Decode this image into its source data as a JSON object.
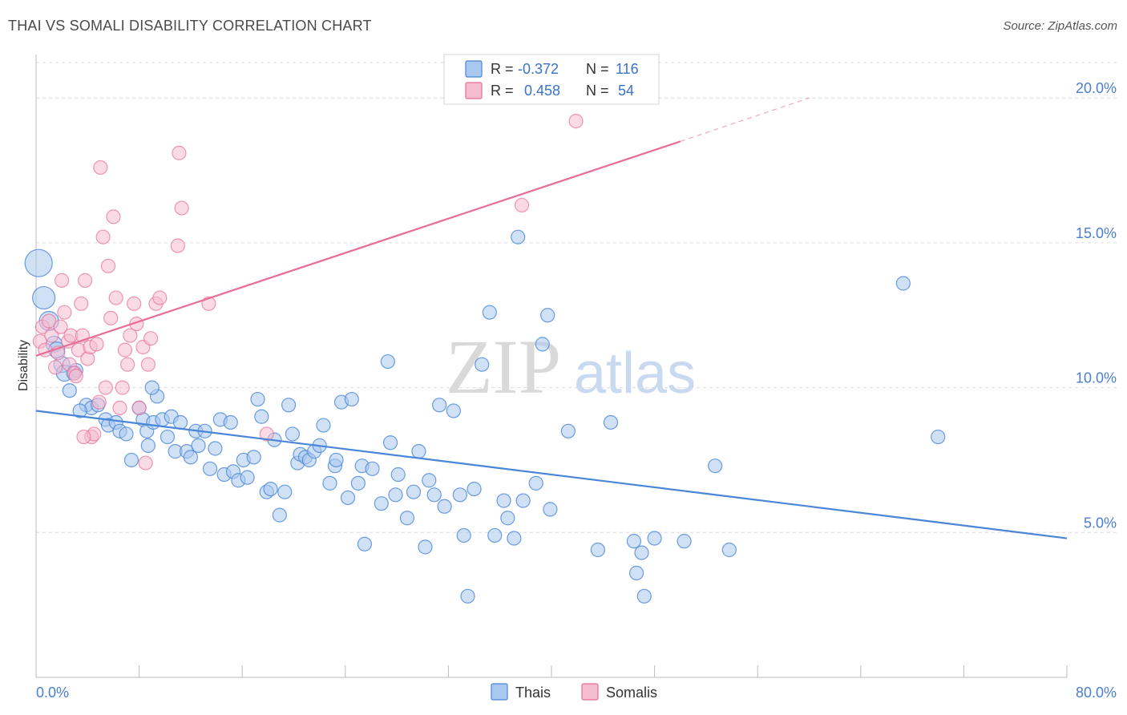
{
  "header": {
    "title": "THAI VS SOMALI DISABILITY CORRELATION CHART",
    "source": "Source: ZipAtlas.com"
  },
  "watermark": {
    "zip": "ZIP",
    "atlas": "atlas"
  },
  "colors": {
    "thais": "#4a86d8",
    "thais_fill": "#a9c8ef",
    "somalis": "#e86d98",
    "somalis_fill": "#f5bcd0",
    "grid": "#dcdcdc",
    "axis_label": "#4a7fd0"
  },
  "legend_top": {
    "rows": [
      {
        "r_label": "R =",
        "r_value": "-0.372",
        "n_label": "N =",
        "n_value": "116"
      },
      {
        "r_label": "R =",
        "r_value": "0.458",
        "n_label": "N =",
        "n_value": "54"
      }
    ]
  },
  "chart_data": {
    "type": "scatter",
    "title": "THAI VS SOMALI DISABILITY CORRELATION CHART",
    "xlabel": "",
    "ylabel": "Disability",
    "xlim": [
      0,
      80
    ],
    "ylim": [
      0,
      21.5
    ],
    "x_tick_labels": [
      "0.0%",
      "80.0%"
    ],
    "y_ticks": [
      5,
      10,
      15,
      20
    ],
    "y_tick_labels": [
      "5.0%",
      "10.0%",
      "15.0%",
      "20.0%"
    ],
    "grid": true,
    "legend_position": "bottom-center",
    "series": [
      {
        "name": "Thais",
        "R": -0.372,
        "N": 116,
        "trend": {
          "x": [
            0,
            80
          ],
          "y": [
            9.2,
            4.8
          ]
        },
        "points": [
          [
            0.2,
            14.3
          ],
          [
            0.6,
            13.1
          ],
          [
            1.0,
            12.3
          ],
          [
            1.4,
            11.5
          ],
          [
            1.6,
            11.3
          ],
          [
            2.0,
            10.8
          ],
          [
            2.2,
            10.5
          ],
          [
            3.1,
            10.6
          ],
          [
            2.6,
            9.9
          ],
          [
            3.9,
            9.4
          ],
          [
            4.3,
            9.3
          ],
          [
            3.4,
            9.2
          ],
          [
            4.8,
            9.4
          ],
          [
            5.4,
            8.9
          ],
          [
            5.6,
            8.7
          ],
          [
            6.2,
            8.8
          ],
          [
            6.5,
            8.5
          ],
          [
            7.0,
            8.4
          ],
          [
            7.4,
            7.5
          ],
          [
            8.0,
            9.3
          ],
          [
            8.3,
            8.9
          ],
          [
            8.7,
            8.0
          ],
          [
            8.6,
            8.5
          ],
          [
            9.1,
            8.8
          ],
          [
            9.4,
            9.7
          ],
          [
            9.8,
            8.9
          ],
          [
            10.2,
            8.3
          ],
          [
            10.5,
            9.0
          ],
          [
            10.8,
            7.8
          ],
          [
            11.2,
            8.8
          ],
          [
            11.7,
            7.8
          ],
          [
            12.0,
            7.6
          ],
          [
            12.4,
            8.5
          ],
          [
            12.6,
            8.0
          ],
          [
            13.1,
            8.5
          ],
          [
            13.5,
            7.2
          ],
          [
            13.9,
            7.9
          ],
          [
            14.3,
            8.9
          ],
          [
            14.6,
            7.0
          ],
          [
            15.1,
            8.8
          ],
          [
            15.3,
            7.1
          ],
          [
            15.7,
            6.8
          ],
          [
            16.1,
            7.5
          ],
          [
            16.4,
            6.9
          ],
          [
            16.9,
            7.6
          ],
          [
            17.2,
            9.6
          ],
          [
            17.5,
            9.0
          ],
          [
            17.9,
            6.4
          ],
          [
            18.2,
            6.5
          ],
          [
            18.5,
            8.2
          ],
          [
            18.9,
            5.6
          ],
          [
            19.3,
            6.4
          ],
          [
            19.6,
            9.4
          ],
          [
            19.9,
            8.4
          ],
          [
            20.3,
            7.4
          ],
          [
            20.5,
            7.7
          ],
          [
            20.9,
            7.6
          ],
          [
            21.2,
            7.5
          ],
          [
            21.6,
            7.8
          ],
          [
            22.0,
            8.0
          ],
          [
            22.3,
            8.7
          ],
          [
            22.8,
            6.7
          ],
          [
            23.2,
            7.3
          ],
          [
            23.3,
            7.5
          ],
          [
            23.7,
            9.5
          ],
          [
            24.2,
            6.2
          ],
          [
            24.5,
            9.6
          ],
          [
            25.0,
            6.7
          ],
          [
            25.3,
            7.3
          ],
          [
            25.5,
            4.6
          ],
          [
            26.1,
            7.2
          ],
          [
            26.8,
            6.0
          ],
          [
            27.3,
            10.9
          ],
          [
            27.5,
            8.1
          ],
          [
            27.9,
            6.3
          ],
          [
            28.1,
            7.0
          ],
          [
            28.8,
            5.5
          ],
          [
            29.3,
            6.4
          ],
          [
            29.7,
            7.8
          ],
          [
            30.2,
            4.5
          ],
          [
            30.5,
            6.8
          ],
          [
            30.9,
            6.3
          ],
          [
            31.3,
            9.4
          ],
          [
            31.7,
            5.9
          ],
          [
            32.4,
            9.2
          ],
          [
            32.9,
            6.3
          ],
          [
            33.2,
            4.9
          ],
          [
            33.5,
            2.8
          ],
          [
            34.0,
            6.5
          ],
          [
            34.6,
            10.8
          ],
          [
            35.2,
            12.6
          ],
          [
            35.6,
            4.9
          ],
          [
            36.3,
            6.1
          ],
          [
            36.6,
            5.5
          ],
          [
            37.1,
            4.8
          ],
          [
            37.4,
            15.2
          ],
          [
            37.8,
            6.1
          ],
          [
            38.8,
            6.7
          ],
          [
            39.3,
            11.5
          ],
          [
            39.7,
            12.5
          ],
          [
            39.9,
            5.8
          ],
          [
            41.3,
            8.5
          ],
          [
            43.6,
            4.4
          ],
          [
            44.6,
            8.8
          ],
          [
            46.4,
            4.7
          ],
          [
            46.6,
            3.6
          ],
          [
            47.0,
            4.3
          ],
          [
            47.2,
            2.8
          ],
          [
            48.0,
            4.8
          ],
          [
            50.3,
            4.7
          ],
          [
            52.7,
            7.3
          ],
          [
            53.8,
            4.4
          ],
          [
            67.3,
            13.6
          ],
          [
            70.0,
            8.3
          ],
          [
            2.9,
            10.5
          ],
          [
            9.0,
            10.0
          ]
        ]
      },
      {
        "name": "Somalis",
        "R": 0.458,
        "N": 54,
        "trend": {
          "x": [
            0,
            50
          ],
          "y": [
            11.1,
            18.5
          ]
        },
        "trend_dashed": {
          "x": [
            50,
            60
          ],
          "y": [
            18.5,
            20.0
          ]
        },
        "points": [
          [
            0.3,
            11.6
          ],
          [
            0.5,
            12.1
          ],
          [
            0.7,
            11.3
          ],
          [
            1.0,
            12.3
          ],
          [
            1.2,
            11.8
          ],
          [
            1.5,
            10.7
          ],
          [
            1.7,
            11.2
          ],
          [
            1.9,
            12.1
          ],
          [
            2.0,
            13.7
          ],
          [
            2.2,
            12.6
          ],
          [
            2.5,
            11.6
          ],
          [
            2.6,
            10.8
          ],
          [
            2.7,
            11.8
          ],
          [
            3.0,
            10.5
          ],
          [
            3.1,
            10.4
          ],
          [
            3.3,
            11.3
          ],
          [
            3.5,
            12.9
          ],
          [
            3.6,
            11.8
          ],
          [
            3.8,
            13.7
          ],
          [
            4.0,
            11.0
          ],
          [
            4.2,
            11.4
          ],
          [
            4.3,
            8.3
          ],
          [
            4.5,
            8.4
          ],
          [
            4.7,
            11.5
          ],
          [
            4.9,
            9.5
          ],
          [
            5.0,
            17.6
          ],
          [
            5.2,
            15.2
          ],
          [
            5.4,
            10.0
          ],
          [
            5.6,
            14.2
          ],
          [
            5.8,
            12.4
          ],
          [
            6.0,
            15.9
          ],
          [
            6.2,
            13.1
          ],
          [
            6.5,
            9.3
          ],
          [
            6.7,
            10.0
          ],
          [
            6.9,
            11.3
          ],
          [
            7.1,
            10.8
          ],
          [
            7.3,
            11.8
          ],
          [
            7.6,
            12.9
          ],
          [
            7.8,
            12.2
          ],
          [
            8.0,
            9.3
          ],
          [
            8.3,
            11.4
          ],
          [
            8.5,
            7.4
          ],
          [
            8.7,
            10.8
          ],
          [
            8.9,
            11.7
          ],
          [
            9.3,
            12.9
          ],
          [
            9.6,
            13.1
          ],
          [
            11.1,
            18.1
          ],
          [
            11.3,
            16.2
          ],
          [
            11.0,
            14.9
          ],
          [
            13.4,
            12.9
          ],
          [
            17.9,
            8.4
          ],
          [
            37.7,
            16.3
          ],
          [
            41.9,
            19.2
          ],
          [
            3.7,
            8.3
          ]
        ]
      }
    ]
  },
  "legend_bottom": {
    "items": [
      {
        "label": "Thais"
      },
      {
        "label": "Somalis"
      }
    ]
  }
}
